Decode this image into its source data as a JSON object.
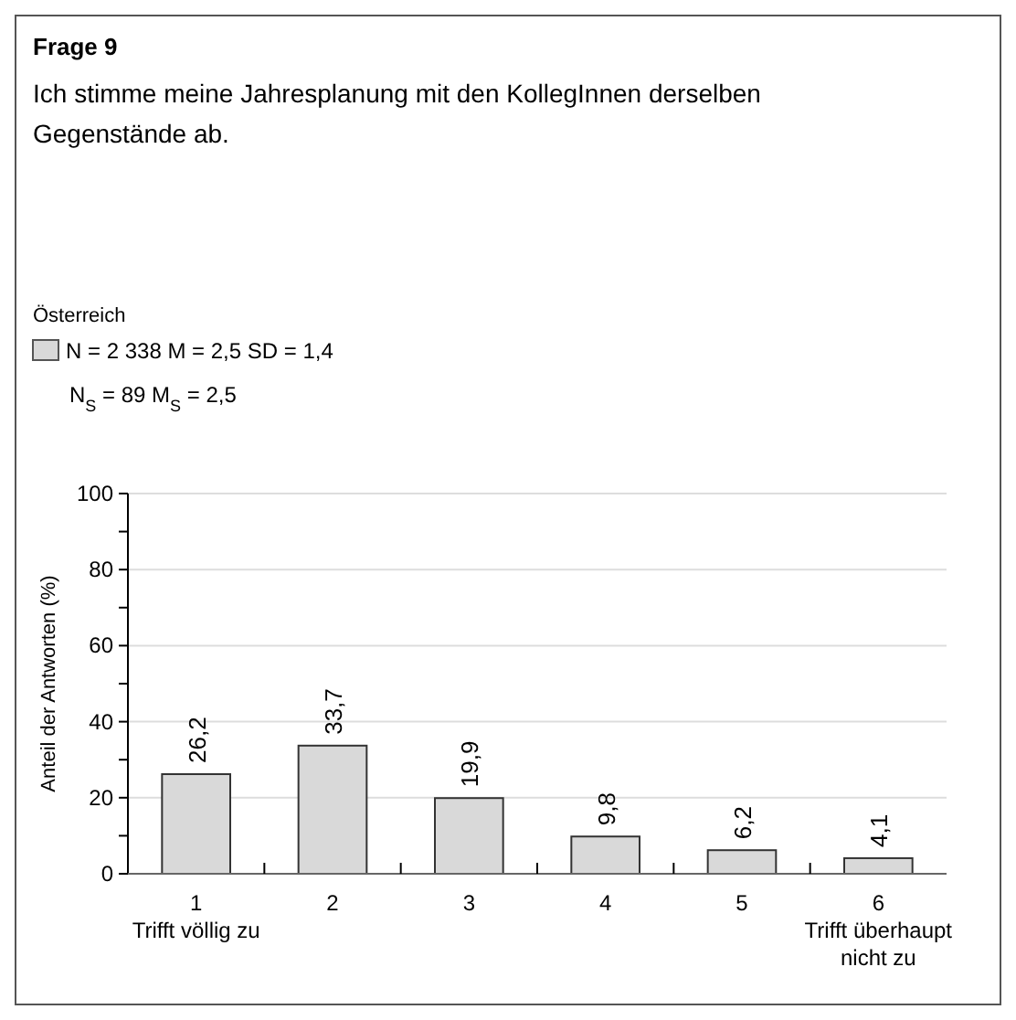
{
  "chart_data": {
    "type": "bar",
    "title": "Frage 9",
    "subtitle": "Ich stimme meine Jahresplanung mit den KollegInnen derselben Gegenstände ab.",
    "legend_title": "Österreich",
    "legend": "top left",
    "ylabel": "Anteil der Antworten (%)",
    "categories": [
      "1\nTrifft völlig zu",
      "2",
      "3",
      "4",
      "5",
      "6\nTrifft überhaupt nicht zu"
    ],
    "series": [
      {
        "name": "N = 2 338 M = 2,5 SD = 1,4",
        "color": "#d9d9d9",
        "values": [
          26.2,
          33.7,
          19.9,
          9.8,
          6.2,
          4.1
        ],
        "value_labels": [
          "26,2",
          "33,7",
          "19,9",
          "9,8",
          "6,2",
          "4,1"
        ]
      }
    ],
    "annotations": [
      "N$_{S}$ = 89  M$_{S}$ = 2,5"
    ],
    "ylim": [
      0,
      100
    ],
    "yticks": [
      0,
      {
        "value": 10,
        "label": null
      },
      20,
      {
        "value": 30,
        "label": null
      },
      40,
      {
        "value": 50,
        "label": null
      },
      60,
      {
        "value": 70,
        "label": null
      },
      80,
      {
        "value": 90,
        "label": null
      },
      100
    ],
    "grid": "y"
  }
}
